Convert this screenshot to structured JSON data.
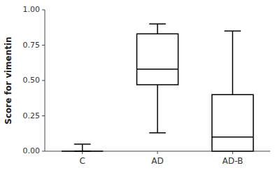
{
  "chart_data": {
    "type": "box",
    "categories": [
      "C",
      "AD",
      "AD-B"
    ],
    "boxes": [
      {
        "q1": 0.0,
        "median": 0.0,
        "q3": 0.0,
        "whislo": 0.0,
        "whishi": 0.05
      },
      {
        "q1": 0.47,
        "median": 0.58,
        "q3": 0.83,
        "whislo": 0.13,
        "whishi": 0.9
      },
      {
        "q1": 0.0,
        "median": 0.1,
        "q3": 0.4,
        "whislo": 0.0,
        "whishi": 0.85
      }
    ],
    "y_label": "Score for vimentin",
    "ylim": [
      0.0,
      1.0
    ],
    "yticks": [
      {
        "value": 0.0,
        "label": "0.00"
      },
      {
        "value": 0.25,
        "label": "0.25"
      },
      {
        "value": 0.5,
        "label": "0.50"
      },
      {
        "value": 0.75,
        "label": "0.75"
      },
      {
        "value": 1.0,
        "label": "1.00"
      }
    ],
    "color": "#000000",
    "grid": false
  }
}
